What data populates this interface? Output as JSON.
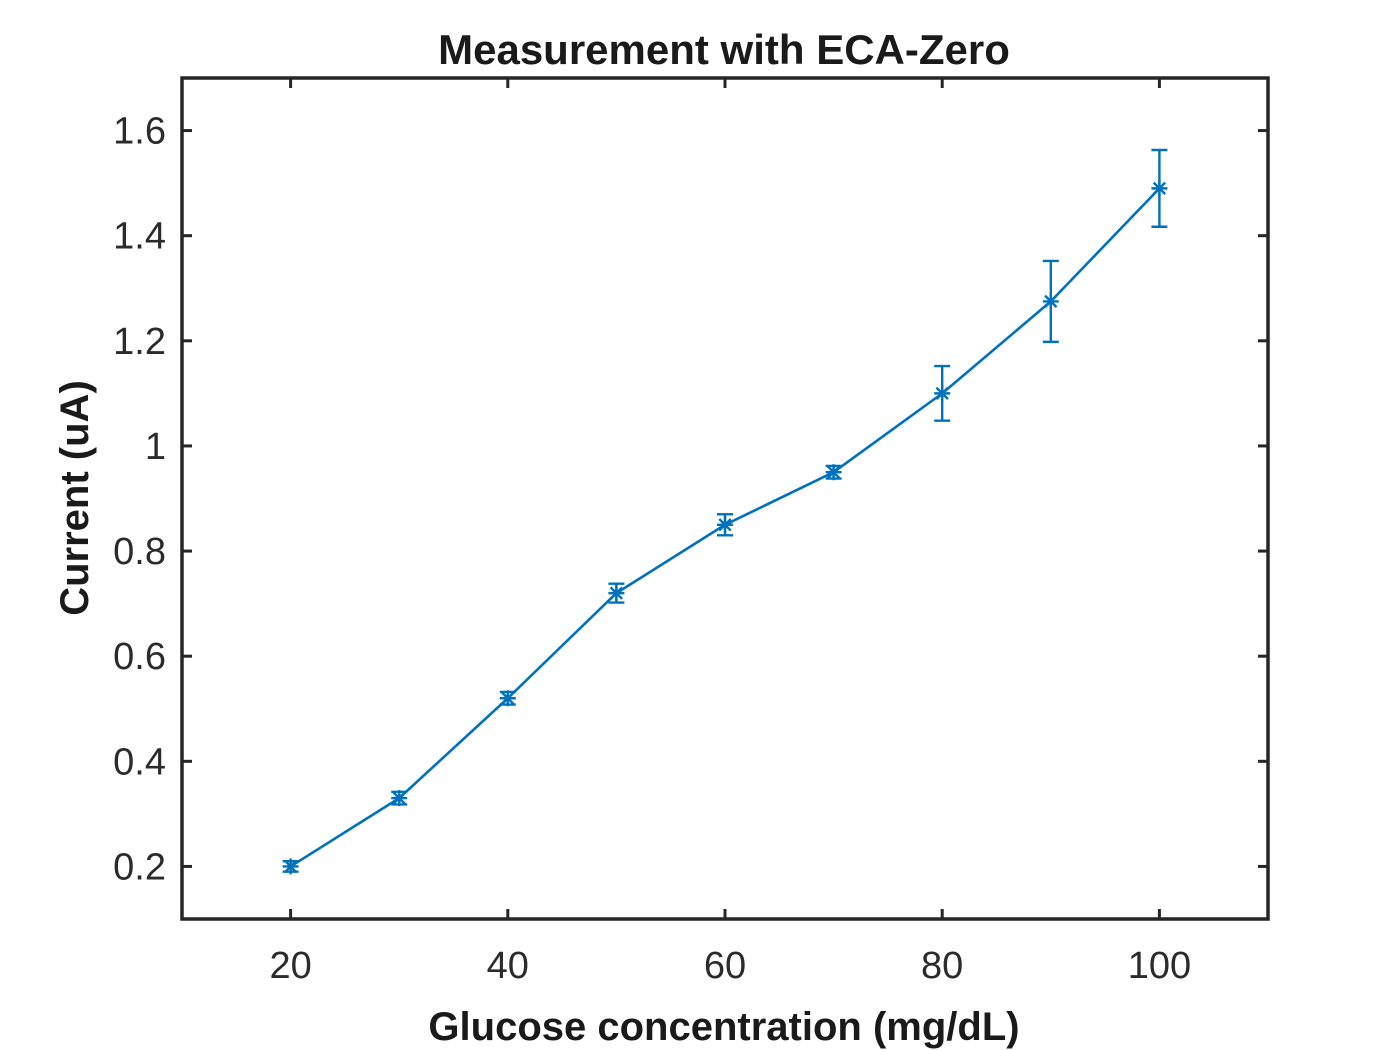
{
  "chart_data": {
    "type": "line",
    "title": "Measurement with ECA-Zero",
    "xlabel": "Glucose concentration (mg/dL)",
    "ylabel": "Current (uA)",
    "xlim": [
      10,
      110
    ],
    "ylim": [
      0.1,
      1.7
    ],
    "xticks": [
      20,
      40,
      60,
      80,
      100
    ],
    "xtick_labels": [
      "20",
      "40",
      "60",
      "80",
      "100"
    ],
    "yticks": [
      0.2,
      0.4,
      0.6,
      0.8,
      1.0,
      1.2,
      1.4,
      1.6
    ],
    "ytick_labels": [
      "0.2",
      "0.4",
      "0.6",
      "0.8",
      "1",
      "1.2",
      "1.4",
      "1.6"
    ],
    "grid": false,
    "legend": "none",
    "series": [
      {
        "color": "#0072BD",
        "marker": "asterisk",
        "x": [
          20,
          30,
          40,
          50,
          60,
          70,
          80,
          90,
          100
        ],
        "y": [
          0.2,
          0.33,
          0.52,
          0.72,
          0.85,
          0.95,
          1.1,
          1.275,
          1.49
        ],
        "error": [
          0.01,
          0.012,
          0.012,
          0.018,
          0.02,
          0.012,
          0.052,
          0.077,
          0.073
        ]
      }
    ]
  }
}
